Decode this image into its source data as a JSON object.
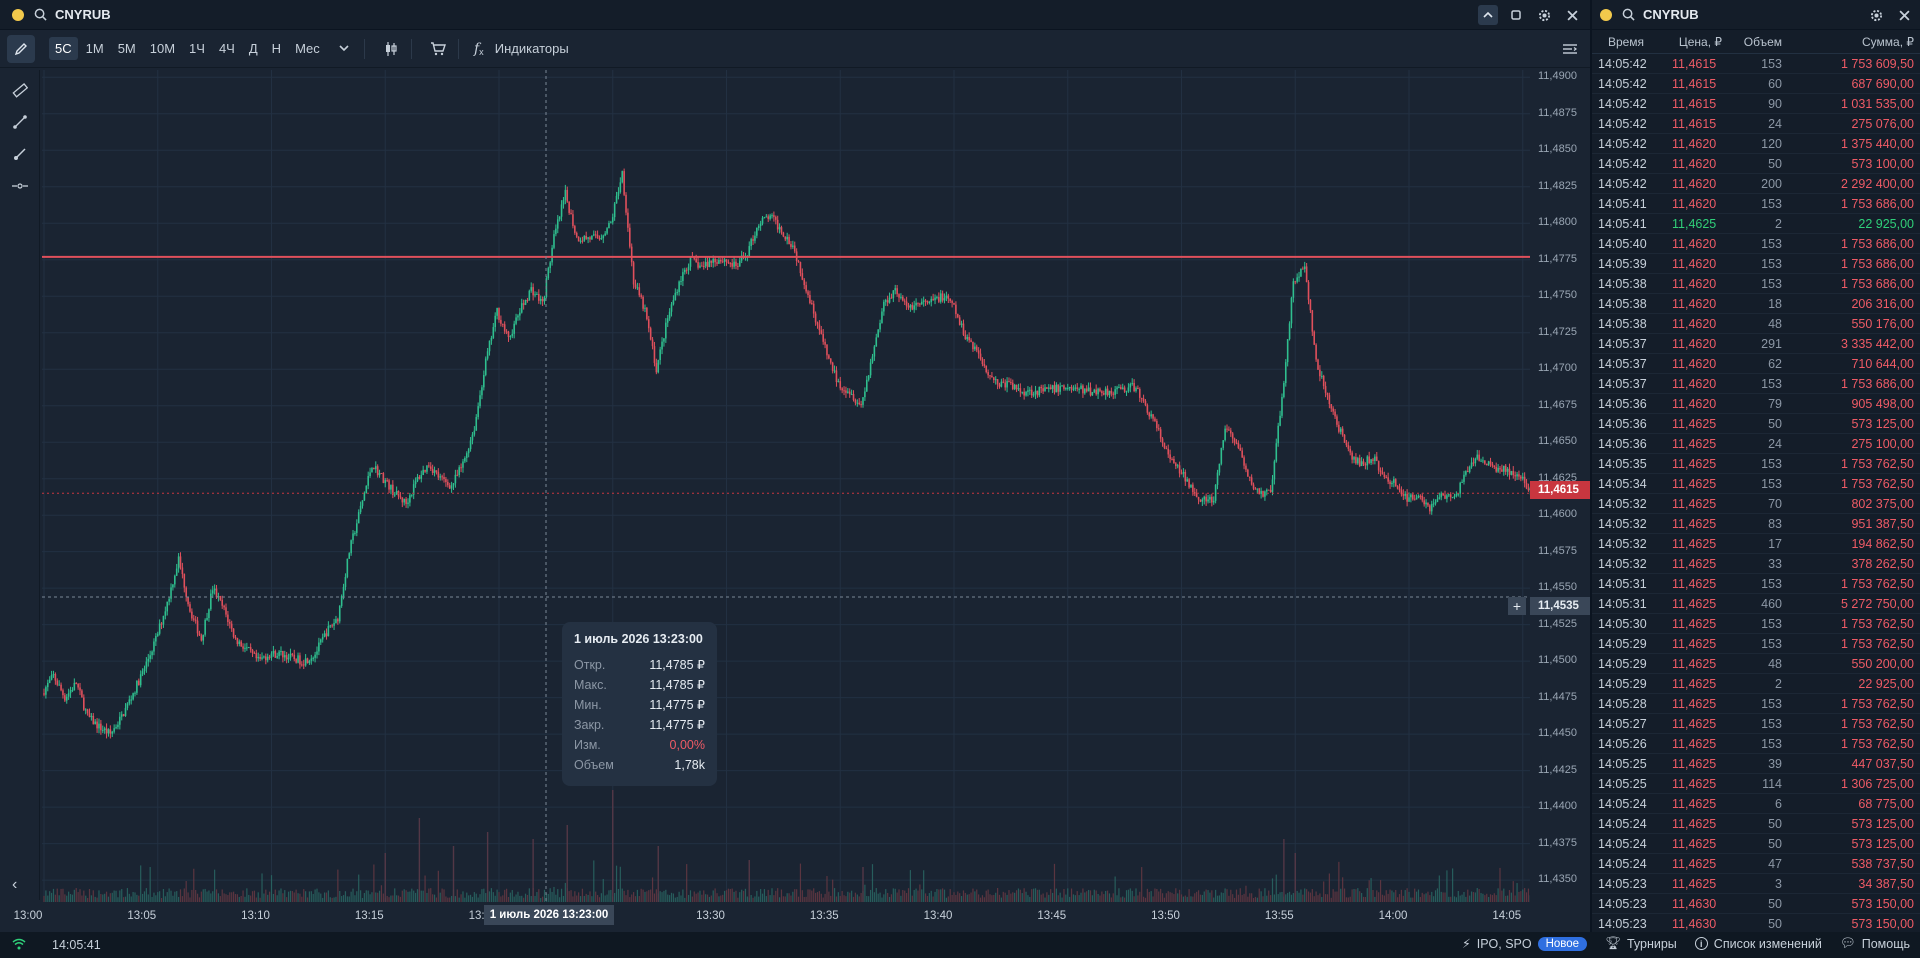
{
  "chart_window": {
    "symbol": "CNYRUB",
    "icons": [
      "search-icon",
      "chevron-up-icon",
      "square-icon",
      "gear-icon",
      "close-icon"
    ]
  },
  "toolbar": {
    "timeframes": [
      "5С",
      "1М",
      "5М",
      "10М",
      "1Ч",
      "4Ч",
      "Д",
      "Н",
      "Мес"
    ],
    "active_timeframe": "5С",
    "indicators_label": "Индикаторы"
  },
  "y_axis": {
    "ticks": [
      "11,4900",
      "11,4875",
      "11,4850",
      "11,4825",
      "11,4800",
      "11,4775",
      "11,4750",
      "11,4725",
      "11,4700",
      "11,4675",
      "11,4650",
      "11,4625",
      "11,4600",
      "11,4575",
      "11,4550",
      "11,4525",
      "11,4500",
      "11,4475",
      "11,4450",
      "11,4425",
      "11,4400",
      "11,4375",
      "11,4350"
    ]
  },
  "x_axis": {
    "ticks": [
      "13:00",
      "13:05",
      "13:10",
      "13:15",
      "13:20",
      "13:25",
      "13:30",
      "13:35",
      "13:40",
      "13:45",
      "13:50",
      "13:55",
      "14:00",
      "14:05"
    ]
  },
  "last_price": "11,4615",
  "crosshair": {
    "price": "11,4535",
    "time": "1 июль 2026 13:23:00"
  },
  "tooltip": {
    "title": "1 июль 2026 13:23:00",
    "rows": [
      {
        "k": "Откр.",
        "v": "11,4785 ₽"
      },
      {
        "k": "Макс.",
        "v": "11,4785 ₽"
      },
      {
        "k": "Мин.",
        "v": "11,4775 ₽"
      },
      {
        "k": "Закр.",
        "v": "11,4775 ₽"
      },
      {
        "k": "Изм.",
        "v": "0,00%"
      },
      {
        "k": "Объем",
        "v": "1,78k"
      }
    ]
  },
  "colors": {
    "up": "#2fbf8f",
    "down": "#e0505c",
    "level_line": "#e0505c",
    "background": "#1a2432"
  },
  "chart_data": {
    "type": "candlestick",
    "x_range": [
      "13:00",
      "14:06"
    ],
    "ylim": [
      11.4335,
      11.4905
    ],
    "horizontal_level": 11.4777,
    "last_price": 11.4615,
    "path": [
      [
        0.0,
        11.4478
      ],
      [
        0.5,
        11.449
      ],
      [
        1.0,
        11.4475
      ],
      [
        1.5,
        11.4485
      ],
      [
        2.0,
        11.4462
      ],
      [
        2.5,
        11.4455
      ],
      [
        3.0,
        11.445
      ],
      [
        3.5,
        11.4462
      ],
      [
        4.0,
        11.4478
      ],
      [
        4.5,
        11.4495
      ],
      [
        5.0,
        11.4515
      ],
      [
        5.5,
        11.454
      ],
      [
        6.0,
        11.457
      ],
      [
        6.5,
        11.4535
      ],
      [
        7.0,
        11.4515
      ],
      [
        7.5,
        11.455
      ],
      [
        8.0,
        11.4535
      ],
      [
        8.5,
        11.4515
      ],
      [
        9.0,
        11.4508
      ],
      [
        9.5,
        11.45
      ],
      [
        10.0,
        11.4505
      ],
      [
        10.5,
        11.4505
      ],
      [
        11.0,
        11.4502
      ],
      [
        11.5,
        11.45
      ],
      [
        12.0,
        11.4505
      ],
      [
        12.5,
        11.452
      ],
      [
        13.0,
        11.453
      ],
      [
        13.5,
        11.4575
      ],
      [
        14.0,
        11.4605
      ],
      [
        14.5,
        11.4635
      ],
      [
        15.0,
        11.4625
      ],
      [
        15.5,
        11.4615
      ],
      [
        16.0,
        11.4608
      ],
      [
        16.5,
        11.4625
      ],
      [
        17.0,
        11.4635
      ],
      [
        17.5,
        11.4625
      ],
      [
        18.0,
        11.462
      ],
      [
        18.5,
        11.4635
      ],
      [
        19.0,
        11.466
      ],
      [
        19.5,
        11.4705
      ],
      [
        20.0,
        11.474
      ],
      [
        20.5,
        11.472
      ],
      [
        21.0,
        11.474
      ],
      [
        21.5,
        11.4755
      ],
      [
        22.0,
        11.4745
      ],
      [
        22.5,
        11.479
      ],
      [
        23.0,
        11.482
      ],
      [
        23.5,
        11.479
      ],
      [
        24.0,
        11.479
      ],
      [
        24.5,
        11.479
      ],
      [
        25.0,
        11.48
      ],
      [
        25.5,
        11.4835
      ],
      [
        26.0,
        11.476
      ],
      [
        26.5,
        11.474
      ],
      [
        27.0,
        11.47
      ],
      [
        27.5,
        11.4735
      ],
      [
        28.0,
        11.476
      ],
      [
        28.5,
        11.4775
      ],
      [
        29.0,
        11.477
      ],
      [
        29.5,
        11.4775
      ],
      [
        30.0,
        11.4775
      ],
      [
        30.5,
        11.477
      ],
      [
        31.0,
        11.478
      ],
      [
        31.5,
        11.48
      ],
      [
        32.0,
        11.4805
      ],
      [
        32.5,
        11.4795
      ],
      [
        33.0,
        11.4785
      ],
      [
        33.5,
        11.476
      ],
      [
        34.0,
        11.4735
      ],
      [
        34.5,
        11.471
      ],
      [
        35.0,
        11.469
      ],
      [
        35.5,
        11.4685
      ],
      [
        36.0,
        11.4675
      ],
      [
        36.5,
        11.471
      ],
      [
        37.0,
        11.4745
      ],
      [
        37.5,
        11.4755
      ],
      [
        38.0,
        11.4742
      ],
      [
        38.5,
        11.4745
      ],
      [
        39.0,
        11.4745
      ],
      [
        39.5,
        11.475
      ],
      [
        40.0,
        11.4745
      ],
      [
        40.5,
        11.4725
      ],
      [
        41.0,
        11.4715
      ],
      [
        41.5,
        11.47
      ],
      [
        42.0,
        11.469
      ],
      [
        42.5,
        11.469
      ],
      [
        43.0,
        11.4685
      ],
      [
        44.0,
        11.4685
      ],
      [
        45.0,
        11.4688
      ],
      [
        46.0,
        11.4685
      ],
      [
        47.0,
        11.4685
      ],
      [
        48.0,
        11.4688
      ],
      [
        48.5,
        11.4675
      ],
      [
        49.0,
        11.466
      ],
      [
        49.5,
        11.464
      ],
      [
        50.0,
        11.463
      ],
      [
        50.5,
        11.462
      ],
      [
        51.0,
        11.461
      ],
      [
        51.5,
        11.461
      ],
      [
        52.0,
        11.466
      ],
      [
        52.5,
        11.465
      ],
      [
        53.0,
        11.4625
      ],
      [
        53.5,
        11.4615
      ],
      [
        54.0,
        11.4615
      ],
      [
        54.5,
        11.468
      ],
      [
        55.0,
        11.476
      ],
      [
        55.5,
        11.477
      ],
      [
        56.0,
        11.4705
      ],
      [
        56.5,
        11.468
      ],
      [
        57.0,
        11.466
      ],
      [
        57.5,
        11.464
      ],
      [
        58.0,
        11.4635
      ],
      [
        58.5,
        11.464
      ],
      [
        59.0,
        11.4625
      ],
      [
        59.5,
        11.4622
      ],
      [
        60.0,
        11.461
      ],
      [
        60.5,
        11.4615
      ],
      [
        61.0,
        11.4605
      ],
      [
        61.5,
        11.4615
      ],
      [
        62.0,
        11.461
      ],
      [
        62.5,
        11.4625
      ],
      [
        63.0,
        11.464
      ],
      [
        63.5,
        11.4635
      ],
      [
        64.0,
        11.4632
      ],
      [
        64.5,
        11.463
      ],
      [
        65.0,
        11.4625
      ],
      [
        65.5,
        11.4615
      ]
    ],
    "volume_peak_marks": [
      [
        15.0,
        0.35
      ],
      [
        16.5,
        0.6
      ],
      [
        18.0,
        0.4
      ],
      [
        19.5,
        0.5
      ],
      [
        21.5,
        0.45
      ],
      [
        23.0,
        0.55
      ],
      [
        25.0,
        0.8
      ],
      [
        27.0,
        0.4
      ],
      [
        31.0,
        0.3
      ],
      [
        36.0,
        0.25
      ],
      [
        54.5,
        0.45
      ],
      [
        55.0,
        0.35
      ]
    ]
  },
  "trades": {
    "symbol": "CNYRUB",
    "icons": [
      "gear-icon",
      "close-icon"
    ],
    "headers": [
      "Время",
      "Цена, ₽",
      "Объем",
      "Сумма, ₽"
    ],
    "rows": [
      {
        "t": "14:05:42",
        "p": "11,4615",
        "q": "153",
        "s": "1 753 609,50",
        "up": false
      },
      {
        "t": "14:05:42",
        "p": "11,4615",
        "q": "60",
        "s": "687 690,00",
        "up": false
      },
      {
        "t": "14:05:42",
        "p": "11,4615",
        "q": "90",
        "s": "1 031 535,00",
        "up": false
      },
      {
        "t": "14:05:42",
        "p": "11,4615",
        "q": "24",
        "s": "275 076,00",
        "up": false
      },
      {
        "t": "14:05:42",
        "p": "11,4620",
        "q": "120",
        "s": "1 375 440,00",
        "up": false
      },
      {
        "t": "14:05:42",
        "p": "11,4620",
        "q": "50",
        "s": "573 100,00",
        "up": false
      },
      {
        "t": "14:05:42",
        "p": "11,4620",
        "q": "200",
        "s": "2 292 400,00",
        "up": false
      },
      {
        "t": "14:05:41",
        "p": "11,4620",
        "q": "153",
        "s": "1 753 686,00",
        "up": false
      },
      {
        "t": "14:05:41",
        "p": "11,4625",
        "q": "2",
        "s": "22 925,00",
        "up": true
      },
      {
        "t": "14:05:40",
        "p": "11,4620",
        "q": "153",
        "s": "1 753 686,00",
        "up": false
      },
      {
        "t": "14:05:39",
        "p": "11,4620",
        "q": "153",
        "s": "1 753 686,00",
        "up": false
      },
      {
        "t": "14:05:38",
        "p": "11,4620",
        "q": "153",
        "s": "1 753 686,00",
        "up": false
      },
      {
        "t": "14:05:38",
        "p": "11,4620",
        "q": "18",
        "s": "206 316,00",
        "up": false
      },
      {
        "t": "14:05:38",
        "p": "11,4620",
        "q": "48",
        "s": "550 176,00",
        "up": false
      },
      {
        "t": "14:05:37",
        "p": "11,4620",
        "q": "291",
        "s": "3 335 442,00",
        "up": false
      },
      {
        "t": "14:05:37",
        "p": "11,4620",
        "q": "62",
        "s": "710 644,00",
        "up": false
      },
      {
        "t": "14:05:37",
        "p": "11,4620",
        "q": "153",
        "s": "1 753 686,00",
        "up": false
      },
      {
        "t": "14:05:36",
        "p": "11,4620",
        "q": "79",
        "s": "905 498,00",
        "up": false
      },
      {
        "t": "14:05:36",
        "p": "11,4625",
        "q": "50",
        "s": "573 125,00",
        "up": false
      },
      {
        "t": "14:05:36",
        "p": "11,4625",
        "q": "24",
        "s": "275 100,00",
        "up": false
      },
      {
        "t": "14:05:35",
        "p": "11,4625",
        "q": "153",
        "s": "1 753 762,50",
        "up": false
      },
      {
        "t": "14:05:34",
        "p": "11,4625",
        "q": "153",
        "s": "1 753 762,50",
        "up": false
      },
      {
        "t": "14:05:32",
        "p": "11,4625",
        "q": "70",
        "s": "802 375,00",
        "up": false
      },
      {
        "t": "14:05:32",
        "p": "11,4625",
        "q": "83",
        "s": "951 387,50",
        "up": false
      },
      {
        "t": "14:05:32",
        "p": "11,4625",
        "q": "17",
        "s": "194 862,50",
        "up": false
      },
      {
        "t": "14:05:32",
        "p": "11,4625",
        "q": "33",
        "s": "378 262,50",
        "up": false
      },
      {
        "t": "14:05:31",
        "p": "11,4625",
        "q": "153",
        "s": "1 753 762,50",
        "up": false
      },
      {
        "t": "14:05:31",
        "p": "11,4625",
        "q": "460",
        "s": "5 272 750,00",
        "up": false
      },
      {
        "t": "14:05:30",
        "p": "11,4625",
        "q": "153",
        "s": "1 753 762,50",
        "up": false
      },
      {
        "t": "14:05:29",
        "p": "11,4625",
        "q": "153",
        "s": "1 753 762,50",
        "up": false
      },
      {
        "t": "14:05:29",
        "p": "11,4625",
        "q": "48",
        "s": "550 200,00",
        "up": false
      },
      {
        "t": "14:05:29",
        "p": "11,4625",
        "q": "2",
        "s": "22 925,00",
        "up": false
      },
      {
        "t": "14:05:28",
        "p": "11,4625",
        "q": "153",
        "s": "1 753 762,50",
        "up": false
      },
      {
        "t": "14:05:27",
        "p": "11,4625",
        "q": "153",
        "s": "1 753 762,50",
        "up": false
      },
      {
        "t": "14:05:26",
        "p": "11,4625",
        "q": "153",
        "s": "1 753 762,50",
        "up": false
      },
      {
        "t": "14:05:25",
        "p": "11,4625",
        "q": "39",
        "s": "447 037,50",
        "up": false
      },
      {
        "t": "14:05:25",
        "p": "11,4625",
        "q": "114",
        "s": "1 306 725,00",
        "up": false
      },
      {
        "t": "14:05:24",
        "p": "11,4625",
        "q": "6",
        "s": "68 775,00",
        "up": false
      },
      {
        "t": "14:05:24",
        "p": "11,4625",
        "q": "50",
        "s": "573 125,00",
        "up": false
      },
      {
        "t": "14:05:24",
        "p": "11,4625",
        "q": "50",
        "s": "573 125,00",
        "up": false
      },
      {
        "t": "14:05:24",
        "p": "11,4625",
        "q": "47",
        "s": "538 737,50",
        "up": false
      },
      {
        "t": "14:05:23",
        "p": "11,4625",
        "q": "3",
        "s": "34 387,50",
        "up": false
      },
      {
        "t": "14:05:23",
        "p": "11,4630",
        "q": "50",
        "s": "573 150,00",
        "up": false
      },
      {
        "t": "14:05:23",
        "p": "11,4630",
        "q": "50",
        "s": "573 150,00",
        "up": false
      }
    ]
  },
  "status": {
    "clock": "14:05:41",
    "ipo_label": "IPO, SPO",
    "new_badge": "Новое",
    "tournaments": "Турниры",
    "changelog": "Список изменений",
    "help": "Помощь"
  }
}
